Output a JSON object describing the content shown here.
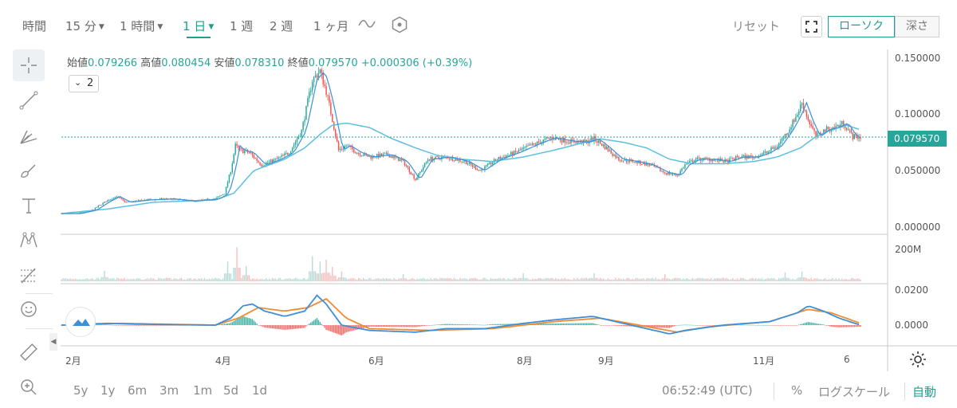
{
  "toolbar": {
    "time_label": "時間",
    "intervals": [
      {
        "label": "15 分",
        "has_caret": true,
        "active": false
      },
      {
        "label": "1 時間",
        "has_caret": true,
        "active": false
      },
      {
        "label": "1 日",
        "has_caret": true,
        "active": true
      },
      {
        "label": "1 週",
        "has_caret": false,
        "active": false
      },
      {
        "label": "2 週",
        "has_caret": false,
        "active": false
      },
      {
        "label": "1 ヶ月",
        "has_caret": false,
        "active": false
      }
    ],
    "reset_label": "リセット",
    "candle_label": "ローソク",
    "depth_label": "深さ"
  },
  "ohlc": {
    "open_label": "始値",
    "open": "0.079266",
    "high_label": "高値",
    "high": "0.080454",
    "low_label": "安値",
    "low": "0.078310",
    "close_label": "終値",
    "close": "0.079570",
    "change": "+0.000306 (+0.39%)"
  },
  "indicator_count": "2",
  "price_axis": [
    "0.150000",
    "0.100000",
    "0.050000",
    "0.000000"
  ],
  "current_price_tag": "0.079570",
  "volume_axis": [
    "200M"
  ],
  "macd_axis": [
    "0.0200",
    "0.0000"
  ],
  "x_axis": [
    "2月",
    "4月",
    "6月",
    "8月",
    "9月",
    "11月",
    "6"
  ],
  "bottom": {
    "ranges": [
      "5y",
      "1y",
      "6m",
      "3m",
      "1m",
      "5d",
      "1d"
    ],
    "clock": "06:52:49 (UTC)",
    "percent": "%",
    "log_scale": "ログスケール",
    "auto": "自動"
  },
  "colors": {
    "up": "#26a69a",
    "down": "#ef5350",
    "accent": "#1e9e8e",
    "ma": "#5bc0de",
    "macd": "#3d8fd8",
    "signal": "#f08c30"
  },
  "chart_data": {
    "type": "candlestick",
    "price_ylim": [
      0,
      0.15
    ],
    "volume_ylim": [
      0,
      200
    ],
    "macd_ylim": [
      -0.005,
      0.02
    ],
    "anchors_close": [
      [
        0,
        0.012
      ],
      [
        10,
        0.012
      ],
      [
        20,
        0.015
      ],
      [
        28,
        0.022
      ],
      [
        35,
        0.027
      ],
      [
        42,
        0.022
      ],
      [
        55,
        0.024
      ],
      [
        70,
        0.025
      ],
      [
        85,
        0.023
      ],
      [
        100,
        0.025
      ],
      [
        106,
        0.03
      ],
      [
        110,
        0.05
      ],
      [
        113,
        0.072
      ],
      [
        116,
        0.068
      ],
      [
        122,
        0.066
      ],
      [
        130,
        0.055
      ],
      [
        140,
        0.06
      ],
      [
        148,
        0.066
      ],
      [
        156,
        0.085
      ],
      [
        163,
        0.13
      ],
      [
        168,
        0.138
      ],
      [
        172,
        0.12
      ],
      [
        176,
        0.095
      ],
      [
        180,
        0.068
      ],
      [
        185,
        0.072
      ],
      [
        192,
        0.066
      ],
      [
        200,
        0.062
      ],
      [
        212,
        0.064
      ],
      [
        222,
        0.058
      ],
      [
        230,
        0.042
      ],
      [
        238,
        0.06
      ],
      [
        250,
        0.062
      ],
      [
        262,
        0.058
      ],
      [
        272,
        0.05
      ],
      [
        283,
        0.06
      ],
      [
        295,
        0.066
      ],
      [
        305,
        0.072
      ],
      [
        318,
        0.079
      ],
      [
        330,
        0.076
      ],
      [
        340,
        0.075
      ],
      [
        346,
        0.078
      ],
      [
        352,
        0.072
      ],
      [
        362,
        0.06
      ],
      [
        372,
        0.058
      ],
      [
        382,
        0.055
      ],
      [
        392,
        0.048
      ],
      [
        400,
        0.046
      ],
      [
        405,
        0.055
      ],
      [
        412,
        0.06
      ],
      [
        422,
        0.06
      ],
      [
        432,
        0.058
      ],
      [
        440,
        0.062
      ],
      [
        450,
        0.062
      ],
      [
        458,
        0.066
      ],
      [
        465,
        0.072
      ],
      [
        472,
        0.085
      ],
      [
        478,
        0.1
      ],
      [
        481,
        0.11
      ],
      [
        485,
        0.095
      ],
      [
        490,
        0.08
      ],
      [
        496,
        0.086
      ],
      [
        502,
        0.088
      ],
      [
        508,
        0.092
      ],
      [
        514,
        0.08
      ],
      [
        519,
        0.0796
      ]
    ],
    "price_ma_anchors": [
      [
        0,
        0.012
      ],
      [
        30,
        0.016
      ],
      [
        60,
        0.022
      ],
      [
        100,
        0.024
      ],
      [
        112,
        0.03
      ],
      [
        125,
        0.05
      ],
      [
        145,
        0.06
      ],
      [
        158,
        0.07
      ],
      [
        168,
        0.082
      ],
      [
        176,
        0.09
      ],
      [
        185,
        0.092
      ],
      [
        200,
        0.088
      ],
      [
        215,
        0.078
      ],
      [
        230,
        0.07
      ],
      [
        245,
        0.063
      ],
      [
        260,
        0.06
      ],
      [
        280,
        0.058
      ],
      [
        300,
        0.062
      ],
      [
        320,
        0.068
      ],
      [
        340,
        0.075
      ],
      [
        350,
        0.078
      ],
      [
        365,
        0.075
      ],
      [
        380,
        0.07
      ],
      [
        395,
        0.06
      ],
      [
        410,
        0.056
      ],
      [
        430,
        0.056
      ],
      [
        450,
        0.058
      ],
      [
        465,
        0.062
      ],
      [
        480,
        0.07
      ],
      [
        490,
        0.08
      ],
      [
        500,
        0.086
      ],
      [
        510,
        0.09
      ],
      [
        519,
        0.086
      ]
    ],
    "macd_anchors": [
      [
        0,
        0.0
      ],
      [
        30,
        0.001
      ],
      [
        50,
        0.0005
      ],
      [
        100,
        0.0
      ],
      [
        110,
        0.004
      ],
      [
        118,
        0.011
      ],
      [
        124,
        0.012
      ],
      [
        132,
        0.008
      ],
      [
        145,
        0.005
      ],
      [
        158,
        0.008
      ],
      [
        166,
        0.017
      ],
      [
        172,
        0.012
      ],
      [
        182,
        0.0
      ],
      [
        200,
        -0.003
      ],
      [
        230,
        -0.004
      ],
      [
        250,
        -0.002
      ],
      [
        275,
        -0.002
      ],
      [
        300,
        0.001
      ],
      [
        320,
        0.003
      ],
      [
        345,
        0.005
      ],
      [
        360,
        0.002
      ],
      [
        380,
        -0.002
      ],
      [
        395,
        -0.005
      ],
      [
        405,
        -0.003
      ],
      [
        430,
        0.0
      ],
      [
        460,
        0.002
      ],
      [
        478,
        0.007
      ],
      [
        485,
        0.011
      ],
      [
        495,
        0.008
      ],
      [
        505,
        0.004
      ],
      [
        519,
        0.0
      ]
    ],
    "signal_anchors": [
      [
        0,
        0.0
      ],
      [
        40,
        0.001
      ],
      [
        100,
        0.0
      ],
      [
        115,
        0.004
      ],
      [
        128,
        0.01
      ],
      [
        145,
        0.008
      ],
      [
        160,
        0.01
      ],
      [
        172,
        0.015
      ],
      [
        185,
        0.004
      ],
      [
        200,
        -0.002
      ],
      [
        240,
        -0.003
      ],
      [
        280,
        -0.002
      ],
      [
        320,
        0.002
      ],
      [
        350,
        0.004
      ],
      [
        375,
        0.0
      ],
      [
        400,
        -0.004
      ],
      [
        420,
        -0.001
      ],
      [
        460,
        0.002
      ],
      [
        485,
        0.009
      ],
      [
        500,
        0.007
      ],
      [
        519,
        0.001
      ]
    ],
    "volume_spikes": [
      [
        28,
        60
      ],
      [
        108,
        110
      ],
      [
        114,
        190
      ],
      [
        120,
        85
      ],
      [
        163,
        140
      ],
      [
        168,
        110
      ],
      [
        172,
        120
      ],
      [
        176,
        80
      ],
      [
        182,
        55
      ],
      [
        222,
        40
      ],
      [
        300,
        45
      ],
      [
        346,
        45
      ],
      [
        392,
        40
      ],
      [
        470,
        50
      ],
      [
        481,
        55
      ]
    ]
  }
}
